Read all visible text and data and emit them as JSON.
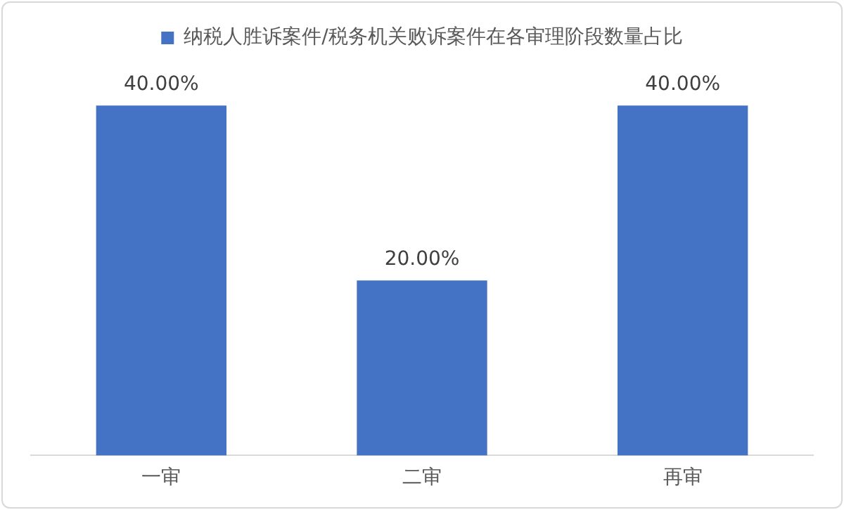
{
  "chart_data": {
    "type": "bar",
    "categories": [
      "一审",
      "二审",
      "再审"
    ],
    "series": [
      {
        "name": "纳税人胜诉案件/税务机关败诉案件在各审理阶段数量占比",
        "color": "#4472c4",
        "values": [
          40,
          20,
          40
        ],
        "value_labels": [
          "40.00%",
          "20.00%",
          "40.00%"
        ]
      }
    ],
    "legend": "top",
    "grid": false
  }
}
